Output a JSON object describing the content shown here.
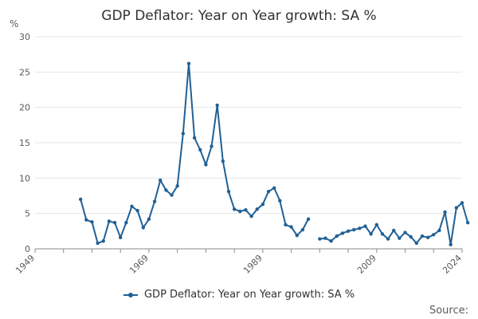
{
  "chart_data": {
    "type": "line",
    "title": "GDP Deflator: Year on Year growth: SA %",
    "ylabel": "%",
    "xlabel": "",
    "ylim": [
      0,
      30
    ],
    "xlim": [
      1949,
      2024
    ],
    "yticks": [
      0,
      5,
      10,
      15,
      20,
      25,
      30
    ],
    "xticks": [
      1949,
      1969,
      1989,
      2009,
      2024
    ],
    "series": [
      {
        "name": "GDP Deflator: Year on Year growth: SA %",
        "color": "#206095",
        "points": [
          [
            1957,
            7.0
          ],
          [
            1958,
            4.1
          ],
          [
            1959,
            3.8
          ],
          [
            1960,
            0.8
          ],
          [
            1961,
            1.1
          ],
          [
            1962,
            3.9
          ],
          [
            1963,
            3.7
          ],
          [
            1964,
            1.6
          ],
          [
            1965,
            3.7
          ],
          [
            1966,
            6.0
          ],
          [
            1967,
            5.4
          ],
          [
            1968,
            3.0
          ],
          [
            1969,
            4.2
          ],
          [
            1970,
            6.7
          ],
          [
            1971,
            9.7
          ],
          [
            1972,
            8.3
          ],
          [
            1973,
            7.6
          ],
          [
            1974,
            8.9
          ],
          [
            1975,
            16.3
          ],
          [
            1976,
            26.2
          ],
          [
            1977,
            15.7
          ],
          [
            1978,
            14.0
          ],
          [
            1979,
            11.9
          ],
          [
            1980,
            14.5
          ],
          [
            1981,
            20.3
          ],
          [
            1982,
            12.4
          ],
          [
            1983,
            8.1
          ],
          [
            1984,
            5.6
          ],
          [
            1985,
            5.3
          ],
          [
            1986,
            5.5
          ],
          [
            1987,
            4.6
          ],
          [
            1988,
            5.6
          ],
          [
            1989,
            6.3
          ],
          [
            1990,
            8.1
          ],
          [
            1991,
            8.6
          ],
          [
            1992,
            6.8
          ],
          [
            1993,
            3.4
          ],
          [
            1994,
            3.1
          ],
          [
            1995,
            1.9
          ],
          [
            1996,
            2.7
          ],
          [
            1997,
            4.2
          ],
          null,
          [
            1999,
            1.4
          ],
          [
            2000,
            1.5
          ],
          [
            2001,
            1.1
          ],
          [
            2002,
            1.8
          ],
          [
            2003,
            2.2
          ],
          [
            2004,
            2.5
          ],
          [
            2005,
            2.7
          ],
          [
            2006,
            2.9
          ],
          [
            2007,
            3.2
          ],
          [
            2008,
            2.1
          ],
          [
            2009,
            3.4
          ],
          [
            2010,
            2.1
          ],
          [
            2011,
            1.4
          ],
          [
            2012,
            2.6
          ],
          [
            2013,
            1.5
          ],
          [
            2014,
            2.3
          ],
          [
            2015,
            1.7
          ],
          [
            2016,
            0.8
          ],
          [
            2017,
            1.8
          ],
          [
            2018,
            1.6
          ],
          [
            2019,
            2.0
          ],
          [
            2020,
            2.6
          ],
          [
            2021,
            5.2
          ],
          [
            2022,
            0.6
          ],
          [
            2023,
            5.8
          ],
          [
            2024,
            6.5
          ],
          [
            2025,
            3.7
          ]
        ]
      }
    ],
    "legend": "bottom-center",
    "source_label": "Source:"
  }
}
